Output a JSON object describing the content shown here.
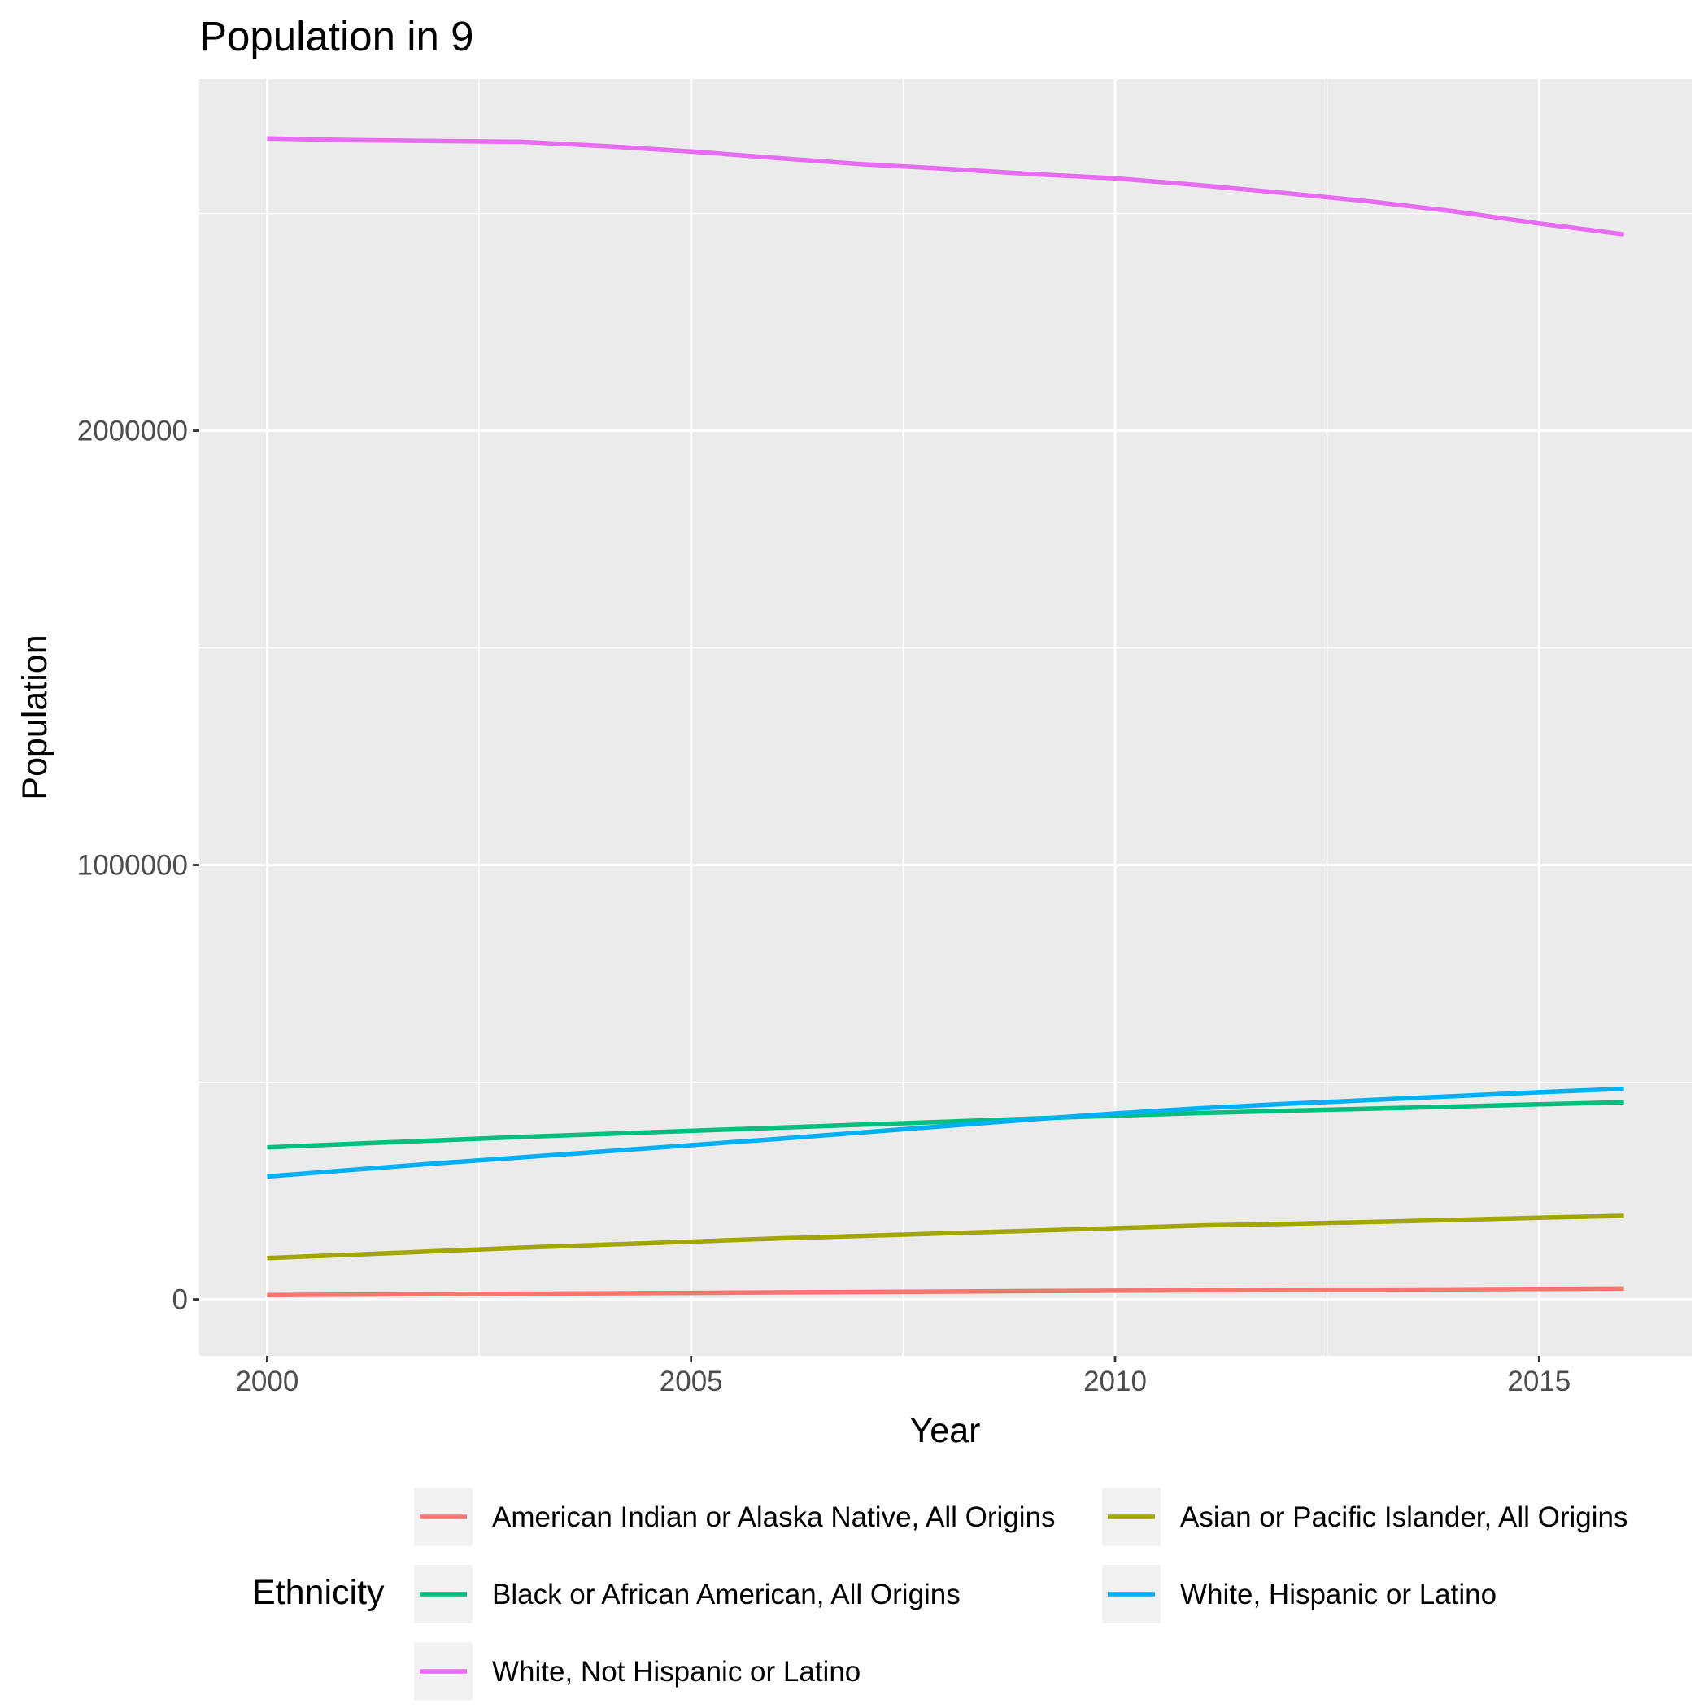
{
  "chart_data": {
    "type": "line",
    "title": "Population in 9",
    "xlabel": "Year",
    "ylabel": "Population",
    "xlim": [
      1999.2,
      2016.8
    ],
    "ylim": [
      -130000,
      2810000
    ],
    "x_ticks": [
      2000,
      2005,
      2010,
      2015
    ],
    "x_minor": [
      2002.5,
      2007.5,
      2012.5
    ],
    "y_ticks": [
      0,
      1000000,
      2000000
    ],
    "y_tick_labels": [
      "0",
      "1000000",
      "2000000"
    ],
    "y_minor": [
      500000,
      1500000,
      2500000
    ],
    "grid": true,
    "legend_title": "Ethnicity",
    "legend_position": "bottom",
    "x": [
      2000,
      2001,
      2002,
      2003,
      2004,
      2005,
      2006,
      2007,
      2008,
      2009,
      2010,
      2011,
      2012,
      2013,
      2014,
      2015,
      2016
    ],
    "series": [
      {
        "name": "American Indian or Alaska Native, All Origins",
        "color": "#F8766D",
        "values": [
          10000,
          11000,
          12000,
          13000,
          14000,
          15000,
          16000,
          17000,
          18000,
          19000,
          20000,
          21000,
          22000,
          22500,
          23000,
          24000,
          25000
        ]
      },
      {
        "name": "Asian or Pacific Islander, All Origins",
        "color": "#A3A500",
        "values": [
          95000,
          103000,
          111000,
          119000,
          126000,
          133000,
          140000,
          146000,
          152000,
          158000,
          164000,
          170000,
          174000,
          178000,
          183000,
          188000,
          192000
        ]
      },
      {
        "name": "Black or African American, All Origins",
        "color": "#00BF7D",
        "values": [
          350000,
          358000,
          366000,
          374000,
          381000,
          388000,
          395000,
          402000,
          409000,
          416000,
          423000,
          429000,
          434000,
          439000,
          444000,
          449000,
          454000
        ]
      },
      {
        "name": "White, Hispanic or Latino",
        "color": "#00B0F6",
        "values": [
          283000,
          298000,
          313000,
          327000,
          341000,
          355000,
          369000,
          384000,
          399000,
          414000,
          428000,
          440000,
          450000,
          459000,
          468000,
          477000,
          485000
        ]
      },
      {
        "name": "White, Not Hispanic or Latino",
        "color": "#E76BF3",
        "values": [
          2673000,
          2669000,
          2667000,
          2665000,
          2655000,
          2643000,
          2628000,
          2614000,
          2603000,
          2591000,
          2581000,
          2565000,
          2547000,
          2528000,
          2505000,
          2477000,
          2452000
        ]
      }
    ]
  }
}
